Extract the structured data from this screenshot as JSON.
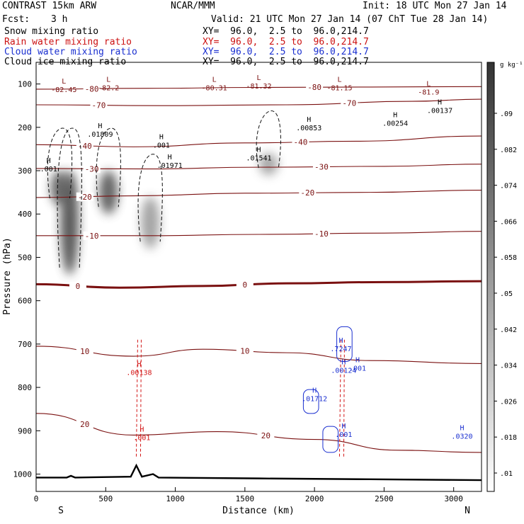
{
  "header": {
    "model": "CONTRAST 15km ARW",
    "org": "NCAR/MMM",
    "init": "Init: 18 UTC Mon 27 Jan 14",
    "fcst_label": "Fcst:",
    "fcst_value": "3 h",
    "valid": "Valid: 21 UTC Mon 27 Jan 14 (07 ChT Tue 28 Jan 14)"
  },
  "fields": [
    {
      "label": "Snow mixing ratio",
      "color": "#000000",
      "xy": "XY=  96.0,  2.5 to  96.0,214.7"
    },
    {
      "label": "Rain water mixing ratio",
      "color": "#cc1111",
      "xy": "XY=  96.0,  2.5 to  96.0,214.7"
    },
    {
      "label": "Cloud water mixing ratio",
      "color": "#1a2fd0",
      "xy": "XY=  96.0,  2.5 to  96.0,214.7"
    },
    {
      "label": "Cloud ice mixing ratio",
      "color": "#000000",
      "xy": "XY=  96.0,  2.5 to  96.0,214.7"
    }
  ],
  "chart_data": {
    "type": "contour-cross-section",
    "xlabel": "Distance (km)",
    "ylabel": "Pressure (hPa)",
    "xlim": [
      0,
      3200
    ],
    "ylim": [
      1040,
      50
    ],
    "x_ticks": [
      0,
      500,
      1000,
      1500,
      2000,
      2500,
      3000
    ],
    "y_ticks": [
      100,
      200,
      300,
      400,
      500,
      600,
      700,
      800,
      900,
      1000
    ],
    "endpoints": {
      "left": "S",
      "right": "N"
    },
    "colorbar": {
      "unit": "g kg⁻¹",
      "labels": [
        ".09",
        ".082",
        ".074",
        ".066",
        ".058",
        ".05",
        ".042",
        ".034",
        ".026",
        ".018",
        ".01"
      ],
      "values": [
        0.09,
        0.082,
        0.074,
        0.066,
        0.058,
        0.05,
        0.042,
        0.034,
        0.026,
        0.018,
        0.01
      ]
    },
    "temperature_labels": [
      "-80",
      "-70",
      "-40",
      "-30",
      "-20",
      "-10",
      "0",
      "10",
      "20"
    ],
    "temperature_contours": [
      {
        "label": "-80",
        "points": [
          [
            0,
            112
          ],
          [
            800,
            110
          ],
          [
            1600,
            108
          ],
          [
            2400,
            107
          ],
          [
            3200,
            106
          ]
        ]
      },
      {
        "label": "-70",
        "points": [
          [
            0,
            148
          ],
          [
            900,
            150
          ],
          [
            1800,
            148
          ],
          [
            2700,
            140
          ],
          [
            3200,
            135
          ]
        ]
      },
      {
        "label": "-40",
        "points": [
          [
            0,
            240
          ],
          [
            700,
            245
          ],
          [
            1500,
            236
          ],
          [
            2300,
            232
          ],
          [
            3200,
            220
          ]
        ]
      },
      {
        "label": "-30",
        "points": [
          [
            0,
            295
          ],
          [
            800,
            296
          ],
          [
            1600,
            292
          ],
          [
            2500,
            290
          ],
          [
            3200,
            285
          ]
        ]
      },
      {
        "label": "-20",
        "points": [
          [
            0,
            362
          ],
          [
            700,
            358
          ],
          [
            1500,
            352
          ],
          [
            2400,
            350
          ],
          [
            3200,
            345
          ]
        ]
      },
      {
        "label": "-10",
        "points": [
          [
            0,
            450
          ],
          [
            800,
            450
          ],
          [
            1600,
            447
          ],
          [
            2500,
            444
          ],
          [
            3200,
            440
          ]
        ]
      },
      {
        "label": "0",
        "points": [
          [
            0,
            562
          ],
          [
            600,
            570
          ],
          [
            1200,
            566
          ],
          [
            1800,
            560
          ],
          [
            2500,
            557
          ],
          [
            3200,
            555
          ]
        ]
      },
      {
        "label": "10",
        "points": [
          [
            0,
            705
          ],
          [
            700,
            728
          ],
          [
            1200,
            712
          ],
          [
            1800,
            720
          ],
          [
            2400,
            738
          ],
          [
            3200,
            745
          ]
        ]
      },
      {
        "label": "20",
        "points": [
          [
            0,
            860
          ],
          [
            700,
            910
          ],
          [
            1300,
            902
          ],
          [
            2000,
            920
          ],
          [
            2600,
            945
          ],
          [
            3200,
            950
          ]
        ]
      }
    ],
    "extrema_labels": [
      {
        "kind": "L",
        "value": "-82.45",
        "x": 200,
        "p": 112
      },
      {
        "kind": "L",
        "value": "-82.2",
        "x": 520,
        "p": 108
      },
      {
        "kind": "L",
        "value": "-80.31",
        "x": 1280,
        "p": 108
      },
      {
        "kind": "L",
        "value": "-81.32",
        "x": 1600,
        "p": 104
      },
      {
        "kind": "L",
        "value": "-81.15",
        "x": 2180,
        "p": 108
      },
      {
        "kind": "L",
        "value": "-81.9",
        "x": 2820,
        "p": 118
      },
      {
        "kind": "H",
        "value": ".00137",
        "x": 2900,
        "p": 160
      },
      {
        "kind": "H",
        "value": ".00254",
        "x": 2580,
        "p": 190
      },
      {
        "kind": "H",
        "value": ".00853",
        "x": 1960,
        "p": 200
      },
      {
        "kind": "H",
        "value": ".01809",
        "x": 460,
        "p": 215
      },
      {
        "kind": "H",
        "value": ".001",
        "x": 90,
        "p": 295
      },
      {
        "kind": "H",
        "value": ".001",
        "x": 900,
        "p": 240
      },
      {
        "kind": "H",
        "value": ".01971",
        "x": 960,
        "p": 287
      },
      {
        "kind": "H",
        "value": ".01541",
        "x": 1600,
        "p": 270
      },
      {
        "kind": "H",
        "value": ".00138",
        "x": 740,
        "p": 765
      },
      {
        "kind": "H",
        "value": ".7247",
        "x": 2190,
        "p": 710
      },
      {
        "kind": "H",
        "value": ".00124",
        "x": 2210,
        "p": 760
      },
      {
        "kind": "H",
        "value": ".001",
        "x": 2310,
        "p": 755
      },
      {
        "kind": "H",
        "value": ".01712",
        "x": 2000,
        "p": 825
      },
      {
        "kind": "H",
        "value": ".001",
        "x": 2210,
        "p": 908
      },
      {
        "kind": "H",
        "value": ".001",
        "x": 760,
        "p": 915
      },
      {
        "kind": "H",
        "value": ".0320",
        "x": 3060,
        "p": 912
      }
    ],
    "snow_cores": [
      {
        "x": 170,
        "p_top": 300,
        "p_bot": 380,
        "intensity": 0.8
      },
      {
        "x": 240,
        "p_top": 300,
        "p_bot": 540,
        "intensity": 0.9
      },
      {
        "x": 520,
        "p_top": 300,
        "p_bot": 400,
        "intensity": 0.85
      },
      {
        "x": 820,
        "p_top": 360,
        "p_bot": 480,
        "intensity": 0.5
      },
      {
        "x": 1670,
        "p_top": 260,
        "p_bot": 310,
        "intensity": 0.5
      }
    ]
  }
}
